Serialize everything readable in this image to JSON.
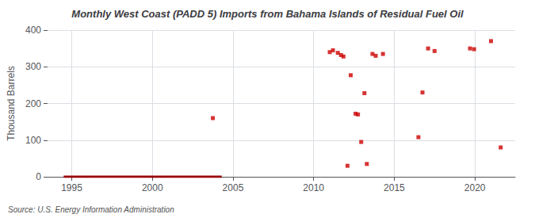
{
  "chart_data": {
    "type": "scatter",
    "title": "Monthly West Coast (PADD 5) Imports from Bahama Islands of Residual Fuel Oil",
    "y_label": "Thousand Barrels",
    "annotation": "Source: U.S. Energy Information Administration",
    "xlim": [
      1993.5,
      2022.5
    ],
    "ylim": [
      0,
      400
    ],
    "xticks": [
      1995,
      2000,
      2005,
      2010,
      2015,
      2020
    ],
    "yticks": [
      0,
      100,
      200,
      300,
      400
    ],
    "grid": true,
    "series": [
      {
        "type": "line",
        "color": "#990000",
        "x": [
          1994.5,
          2004.3
        ],
        "values": [
          0,
          0
        ]
      },
      {
        "type": "scatter",
        "color": "#cc0000",
        "marker": "square",
        "x": [
          2003.75,
          2011.0,
          2011.2,
          2011.5,
          2011.7,
          2011.85,
          2012.1,
          2012.3,
          2012.6,
          2012.75,
          2012.95,
          2013.15,
          2013.3,
          2013.65,
          2013.85,
          2014.3,
          2016.5,
          2016.75,
          2017.1,
          2017.5,
          2019.7,
          2019.95,
          2021.0,
          2021.6
        ],
        "values": [
          160,
          340,
          345,
          338,
          332,
          328,
          30,
          277,
          172,
          170,
          95,
          228,
          35,
          335,
          330,
          335,
          108,
          230,
          350,
          343,
          350,
          348,
          370,
          80
        ]
      }
    ]
  }
}
